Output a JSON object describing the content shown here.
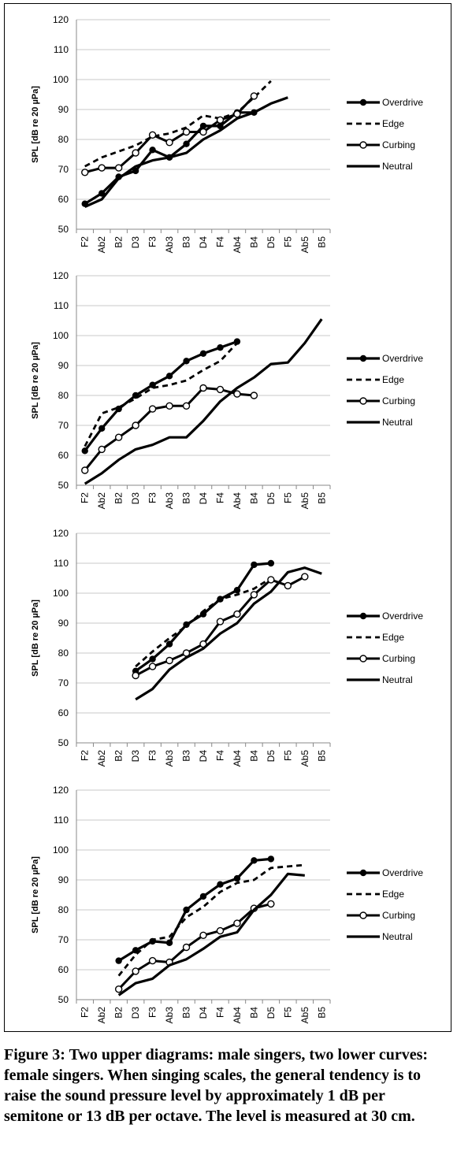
{
  "caption": "Figure 3: Two upper diagrams: male singers, two lower curves: female singers. When singing scales, the general tendency is to raise the sound pressure level by approximately 1 dB per semitone or 13 dB per octave. The level is measured at 30 cm.",
  "chart_data": [
    {
      "type": "line",
      "ylabel": "SPL [dB re 20 µPa]",
      "ylim": [
        50,
        120
      ],
      "yticks": [
        50,
        60,
        70,
        80,
        90,
        100,
        110,
        120
      ],
      "categories": [
        "F2",
        "Ab2",
        "B2",
        "D3",
        "F3",
        "Ab3",
        "B3",
        "D4",
        "F4",
        "Ab4",
        "B4",
        "D5",
        "F5",
        "Ab5",
        "B5"
      ],
      "grid": true,
      "legend": "right",
      "series": [
        {
          "name": "Overdrive",
          "style": "overdrive",
          "values": [
            58.5,
            62,
            67.5,
            69.5,
            76.5,
            74,
            78.5,
            84.5,
            84.5,
            89,
            89,
            null,
            null,
            null,
            null
          ]
        },
        {
          "name": "Edge",
          "style": "edge",
          "values": [
            71,
            74,
            76,
            78,
            81,
            82,
            84,
            88,
            87,
            89,
            94,
            99.5,
            null,
            null,
            null
          ]
        },
        {
          "name": "Curbing",
          "style": "curbing",
          "values": [
            69,
            70.5,
            70.5,
            75.5,
            81.5,
            79,
            82.5,
            82.5,
            86.5,
            88.5,
            94.5,
            null,
            null,
            null,
            null
          ]
        },
        {
          "name": "Neutral",
          "style": "neutral",
          "values": [
            57.5,
            60,
            67,
            71,
            73,
            74,
            75.5,
            80,
            83,
            87,
            89,
            92,
            94,
            null,
            null
          ]
        }
      ]
    },
    {
      "type": "line",
      "ylabel": "SPL [dB re 20 µPa]",
      "ylim": [
        50,
        120
      ],
      "yticks": [
        50,
        60,
        70,
        80,
        90,
        100,
        110,
        120
      ],
      "categories": [
        "F2",
        "Ab2",
        "B2",
        "D3",
        "F3",
        "Ab3",
        "B3",
        "D4",
        "F4",
        "Ab4",
        "B4",
        "D5",
        "F5",
        "Ab5",
        "B5"
      ],
      "grid": true,
      "legend": "right",
      "series": [
        {
          "name": "Overdrive",
          "style": "overdrive",
          "values": [
            61.5,
            69,
            75.5,
            80,
            83.5,
            86.5,
            91.5,
            94,
            96,
            98,
            null,
            null,
            null,
            null,
            null
          ]
        },
        {
          "name": "Edge",
          "style": "edge",
          "values": [
            63,
            74,
            76,
            79,
            82.5,
            83.5,
            85,
            88.5,
            91.5,
            97.5,
            null,
            null,
            null,
            null,
            null
          ]
        },
        {
          "name": "Curbing",
          "style": "curbing",
          "values": [
            55,
            62,
            66,
            70,
            75.5,
            76.5,
            76.5,
            82.5,
            82,
            80.5,
            80,
            null,
            null,
            null,
            null
          ]
        },
        {
          "name": "Neutral",
          "style": "neutral",
          "values": [
            50.5,
            54,
            58.5,
            62,
            63.5,
            66,
            66,
            71.5,
            78,
            82.5,
            86,
            90.5,
            91,
            97.5,
            105.5
          ]
        }
      ]
    },
    {
      "type": "line",
      "ylabel": "SPL [dB re 20 µPa]",
      "ylim": [
        50,
        120
      ],
      "yticks": [
        50,
        60,
        70,
        80,
        90,
        100,
        110,
        120
      ],
      "categories": [
        "F2",
        "Ab2",
        "B2",
        "D3",
        "F3",
        "Ab3",
        "B3",
        "D4",
        "F4",
        "Ab4",
        "B4",
        "D5",
        "F5",
        "Ab5",
        "B5"
      ],
      "grid": true,
      "legend": "right",
      "series": [
        {
          "name": "Overdrive",
          "style": "overdrive",
          "values": [
            null,
            null,
            null,
            74,
            78,
            83,
            89.5,
            93,
            98,
            101,
            109.5,
            110,
            null,
            null,
            null
          ]
        },
        {
          "name": "Edge",
          "style": "edge",
          "values": [
            null,
            null,
            null,
            75.5,
            80.5,
            85,
            89,
            94,
            98,
            99.5,
            101.5,
            105,
            null,
            null,
            null
          ]
        },
        {
          "name": "Curbing",
          "style": "curbing",
          "values": [
            null,
            null,
            null,
            72.5,
            75.5,
            77.5,
            80,
            83,
            90.5,
            93,
            99.5,
            104.5,
            102.5,
            105.5,
            null
          ]
        },
        {
          "name": "Neutral",
          "style": "neutral",
          "values": [
            null,
            null,
            null,
            64.5,
            68,
            74.5,
            78.5,
            81.5,
            86.5,
            90,
            96.5,
            100.5,
            107,
            108.5,
            106.5
          ]
        }
      ]
    },
    {
      "type": "line",
      "ylabel": "SPL [dB re 20 µPa]",
      "ylim": [
        50,
        120
      ],
      "yticks": [
        50,
        60,
        70,
        80,
        90,
        100,
        110,
        120
      ],
      "categories": [
        "F2",
        "Ab2",
        "B2",
        "D3",
        "F3",
        "Ab3",
        "B3",
        "D4",
        "F4",
        "Ab4",
        "B4",
        "D5",
        "F5",
        "Ab5",
        "B5"
      ],
      "grid": true,
      "legend": "right",
      "series": [
        {
          "name": "Overdrive",
          "style": "overdrive",
          "values": [
            null,
            null,
            63,
            66.5,
            69.5,
            69,
            80,
            84.5,
            88.5,
            90.5,
            96.5,
            97,
            null,
            null,
            null
          ]
        },
        {
          "name": "Edge",
          "style": "edge",
          "values": [
            null,
            null,
            58,
            65,
            70,
            71,
            77.5,
            81,
            86,
            89,
            90,
            94,
            94.5,
            95,
            null
          ]
        },
        {
          "name": "Curbing",
          "style": "curbing",
          "values": [
            null,
            null,
            53.5,
            59.5,
            63,
            62.5,
            67.5,
            71.5,
            73,
            75.5,
            80.5,
            82,
            null,
            null,
            null
          ]
        },
        {
          "name": "Neutral",
          "style": "neutral",
          "values": [
            null,
            null,
            51.5,
            55.5,
            57,
            61.5,
            63.5,
            67,
            71,
            72.5,
            80,
            85,
            92,
            91.5,
            null
          ]
        }
      ]
    }
  ]
}
